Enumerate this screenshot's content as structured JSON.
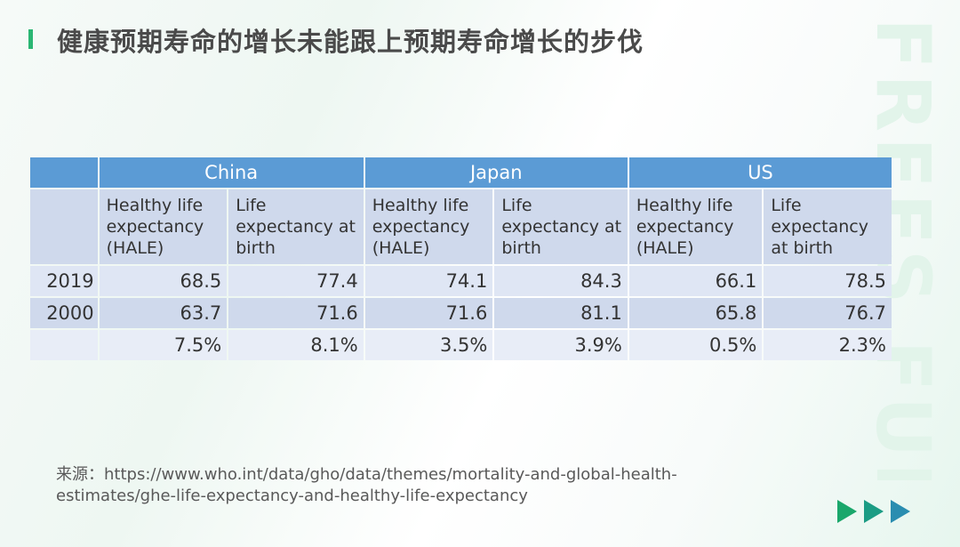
{
  "slide": {
    "title": "健康预期寿命的增长未能跟上预期寿命增长的步伐",
    "watermark": "FREES FUND",
    "source_line1": "来源：https://www.who.int/data/gho/data/themes/mortality-and-global-health-",
    "source_line2": "estimates/ghe-life-expectancy-and-healthy-life-expectancy",
    "colors": {
      "accent": "#2bb673",
      "header_bg": "#5b9bd5",
      "subheader_bg": "#cfd9ec",
      "row_light": "#dfe6f4",
      "arrow_1": "#1aa76b",
      "arrow_2": "#1b9c84",
      "arrow_3": "#2a8db0"
    }
  },
  "table": {
    "countries": [
      "China",
      "Japan",
      "US"
    ],
    "subheaders": [
      "Healthy life expectancy (HALE)",
      "Life expectancy at birth",
      "Healthy life expectancy (HALE)",
      "Life expectancy at birth",
      "Healthy life expectancy (HALE)",
      "Life expectancy at birth"
    ],
    "rows": [
      {
        "label": "2019",
        "values": [
          "68.5",
          "77.4",
          "74.1",
          "84.3",
          "66.1",
          "78.5"
        ]
      },
      {
        "label": "2000",
        "values": [
          "63.7",
          "71.6",
          "71.6",
          "81.1",
          "65.8",
          "76.7"
        ]
      },
      {
        "label": "",
        "values": [
          "7.5%",
          "8.1%",
          "3.5%",
          "3.9%",
          "0.5%",
          "2.3%"
        ]
      }
    ]
  },
  "nav": {
    "icon": "triple-play-arrows-icon"
  }
}
